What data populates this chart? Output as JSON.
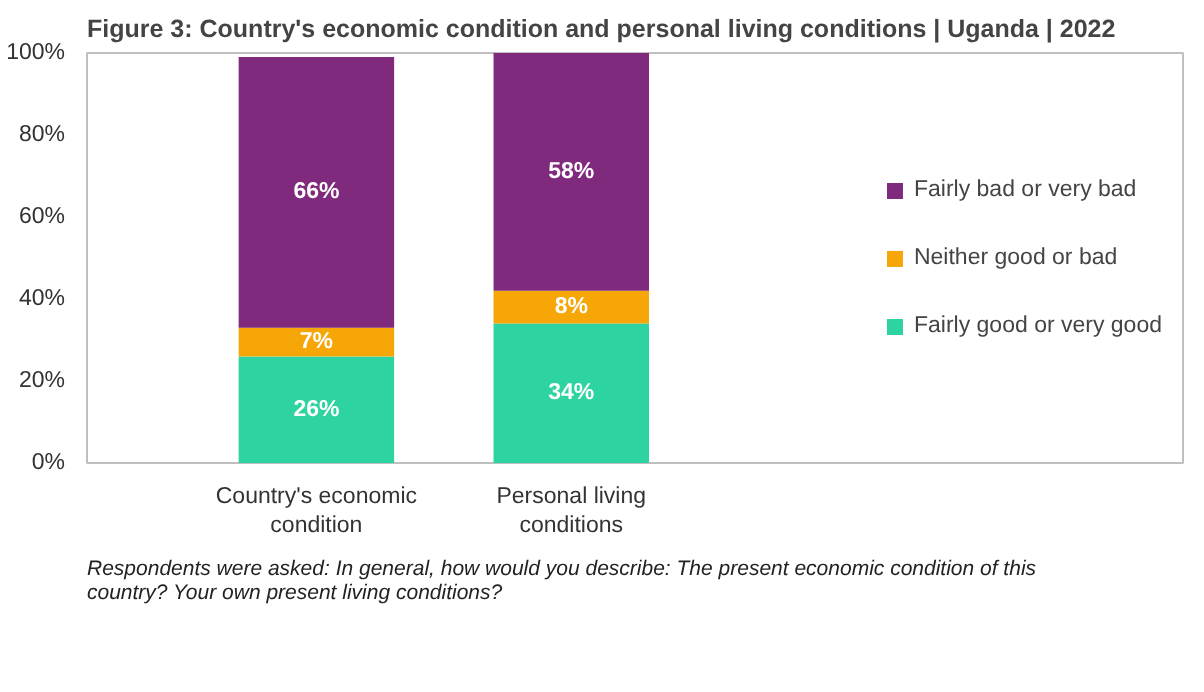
{
  "chart_data": {
    "type": "bar",
    "stacked": true,
    "title": "Figure 3: Country's economic condition and personal living conditions | Uganda | 2022",
    "categories": [
      "Country's economic condition",
      "Personal living conditions"
    ],
    "series": [
      {
        "name": "Fairly good or very good",
        "color": "#2dd3a0",
        "values": [
          26,
          34
        ],
        "value_labels": [
          "26%",
          "34%"
        ]
      },
      {
        "name": "Neither good or bad",
        "color": "#f7a608",
        "values": [
          7,
          8
        ],
        "value_labels": [
          "7%",
          "8%"
        ]
      },
      {
        "name": "Fairly bad or very bad",
        "color": "#7f2a7c",
        "values": [
          66,
          58
        ],
        "value_labels": [
          "66%",
          "58%"
        ]
      }
    ],
    "ylim": [
      0,
      100
    ],
    "yticks": [
      {
        "value": 0,
        "label": "0%"
      },
      {
        "value": 20,
        "label": "20%"
      },
      {
        "value": 40,
        "label": "40%"
      },
      {
        "value": 60,
        "label": "60%"
      },
      {
        "value": 80,
        "label": "80%"
      },
      {
        "value": 100,
        "label": "100%"
      }
    ],
    "grid": false,
    "legend": "right",
    "annotations": [
      "Respondents were asked: In general, how would you describe: The present economic condition of this country? Your own present living conditions?"
    ]
  }
}
